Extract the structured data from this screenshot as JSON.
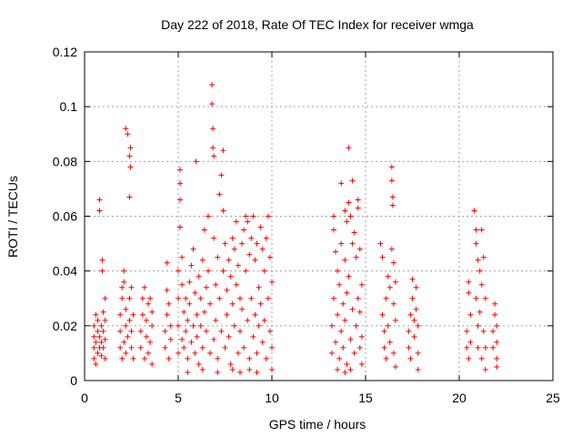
{
  "chart_data": {
    "type": "scatter",
    "title": "Day 222 of 2018, Rate Of TEC Index for receiver wmga",
    "xlabel": "GPS time / hours",
    "ylabel": "ROTI / TECUs",
    "xlim": [
      0,
      25
    ],
    "ylim": [
      0,
      0.12
    ],
    "xticks": [
      0,
      5,
      10,
      15,
      20,
      25
    ],
    "yticks": [
      0,
      0.02,
      0.04,
      0.06,
      0.08,
      0.1,
      0.12
    ],
    "xtick_labels": [
      "0",
      "5",
      "10",
      "15",
      "20",
      "25"
    ],
    "ytick_labels": [
      "0",
      "0.02",
      "0.04",
      "0.06",
      "0.08",
      "0.1",
      "0.12"
    ],
    "grid": true,
    "marker": "+",
    "color": "#ff0000",
    "series": [
      {
        "points": [
          [
            0.5,
            0.012
          ],
          [
            0.5,
            0.016
          ],
          [
            0.5,
            0.02
          ],
          [
            0.5,
            0.008
          ],
          [
            0.6,
            0.024
          ],
          [
            0.6,
            0.006
          ],
          [
            0.6,
            0.014
          ],
          [
            0.7,
            0.01
          ],
          [
            0.7,
            0.018
          ],
          [
            0.7,
            0.022
          ],
          [
            0.8,
            0.066
          ],
          [
            0.8,
            0.062
          ],
          [
            0.8,
            0.012
          ],
          [
            0.8,
            0.016
          ],
          [
            0.9,
            0.009
          ],
          [
            0.9,
            0.02
          ],
          [
            0.9,
            0.014
          ],
          [
            0.95,
            0.04
          ],
          [
            0.95,
            0.044
          ],
          [
            1.0,
            0.025
          ],
          [
            1.0,
            0.012
          ],
          [
            1.0,
            0.018
          ],
          [
            1.1,
            0.008
          ],
          [
            1.1,
            0.022
          ],
          [
            1.1,
            0.03
          ],
          [
            1.1,
            0.015
          ],
          [
            1.9,
            0.012
          ],
          [
            1.9,
            0.018
          ],
          [
            1.9,
            0.024
          ],
          [
            2.0,
            0.03
          ],
          [
            2.0,
            0.034
          ],
          [
            2.0,
            0.008
          ],
          [
            2.1,
            0.04
          ],
          [
            2.1,
            0.036
          ],
          [
            2.1,
            0.014
          ],
          [
            2.2,
            0.02
          ],
          [
            2.2,
            0.026
          ],
          [
            2.2,
            0.01
          ],
          [
            2.2,
            0.092
          ],
          [
            2.3,
            0.09
          ],
          [
            2.3,
            0.016
          ],
          [
            2.4,
            0.022
          ],
          [
            2.4,
            0.03
          ],
          [
            2.4,
            0.082
          ],
          [
            2.45,
            0.085
          ],
          [
            2.45,
            0.078
          ],
          [
            2.4,
            0.067
          ],
          [
            2.5,
            0.034
          ],
          [
            2.5,
            0.012
          ],
          [
            2.5,
            0.018
          ],
          [
            2.6,
            0.008
          ],
          [
            2.6,
            0.024
          ],
          [
            3.0,
            0.012
          ],
          [
            3.0,
            0.018
          ],
          [
            3.1,
            0.024
          ],
          [
            3.1,
            0.03
          ],
          [
            3.2,
            0.008
          ],
          [
            3.2,
            0.034
          ],
          [
            3.3,
            0.016
          ],
          [
            3.3,
            0.022
          ],
          [
            3.4,
            0.028
          ],
          [
            3.4,
            0.01
          ],
          [
            3.5,
            0.03
          ],
          [
            3.5,
            0.014
          ],
          [
            3.6,
            0.02
          ],
          [
            3.6,
            0.025
          ],
          [
            3.6,
            0.006
          ],
          [
            4.3,
            0.012
          ],
          [
            4.3,
            0.018
          ],
          [
            4.4,
            0.024
          ],
          [
            4.4,
            0.033
          ],
          [
            4.4,
            0.043
          ],
          [
            4.5,
            0.008
          ],
          [
            4.5,
            0.028
          ],
          [
            4.6,
            0.015
          ],
          [
            4.6,
            0.02
          ],
          [
            5.0,
            0.01
          ],
          [
            5.0,
            0.02
          ],
          [
            5.0,
            0.03
          ],
          [
            5.0,
            0.04
          ],
          [
            5.1,
            0.077
          ],
          [
            5.1,
            0.072
          ],
          [
            5.1,
            0.066
          ],
          [
            5.1,
            0.056
          ],
          [
            5.2,
            0.045
          ],
          [
            5.2,
            0.035
          ],
          [
            5.2,
            0.015
          ],
          [
            5.3,
            0.025
          ],
          [
            5.3,
            0.012
          ],
          [
            5.4,
            0.03
          ],
          [
            5.4,
            0.018
          ],
          [
            5.5,
            0.022
          ],
          [
            5.5,
            0.008
          ],
          [
            5.6,
            0.036
          ],
          [
            5.6,
            0.028
          ],
          [
            5.7,
            0.042
          ],
          [
            5.7,
            0.014
          ],
          [
            5.8,
            0.048
          ],
          [
            5.8,
            0.02
          ],
          [
            5.9,
            0.032
          ],
          [
            5.9,
            0.01
          ],
          [
            5.95,
            0.08
          ],
          [
            6.0,
            0.024
          ],
          [
            6.0,
            0.016
          ],
          [
            6.1,
            0.038
          ],
          [
            6.1,
            0.006
          ],
          [
            6.2,
            0.03
          ],
          [
            6.2,
            0.02
          ],
          [
            6.3,
            0.044
          ],
          [
            6.3,
            0.012
          ],
          [
            6.4,
            0.055
          ],
          [
            6.4,
            0.025
          ],
          [
            6.5,
            0.034
          ],
          [
            6.5,
            0.018
          ],
          [
            6.6,
            0.06
          ],
          [
            6.6,
            0.04
          ],
          [
            6.7,
            0.028
          ],
          [
            6.7,
            0.01
          ],
          [
            6.8,
            0.108
          ],
          [
            6.8,
            0.101
          ],
          [
            6.85,
            0.092
          ],
          [
            6.85,
            0.085
          ],
          [
            6.9,
            0.082
          ],
          [
            6.9,
            0.052
          ],
          [
            6.9,
            0.015
          ],
          [
            7.0,
            0.035
          ],
          [
            7.0,
            0.022
          ],
          [
            7.1,
            0.045
          ],
          [
            7.1,
            0.008
          ],
          [
            7.2,
            0.068
          ],
          [
            7.2,
            0.03
          ],
          [
            7.3,
            0.075
          ],
          [
            7.3,
            0.018
          ],
          [
            7.4,
            0.084
          ],
          [
            7.4,
            0.062
          ],
          [
            7.4,
            0.04
          ],
          [
            7.5,
            0.05
          ],
          [
            7.5,
            0.012
          ],
          [
            7.6,
            0.033
          ],
          [
            7.6,
            0.024
          ],
          [
            7.7,
            0.044
          ],
          [
            7.7,
            0.016
          ],
          [
            7.8,
            0.038
          ],
          [
            7.8,
            0.006
          ],
          [
            7.9,
            0.052
          ],
          [
            7.9,
            0.028
          ],
          [
            8.0,
            0.048
          ],
          [
            8.0,
            0.02
          ],
          [
            8.1,
            0.058
          ],
          [
            8.1,
            0.035
          ],
          [
            8.2,
            0.042
          ],
          [
            8.2,
            0.01
          ],
          [
            8.3,
            0.03
          ],
          [
            8.3,
            0.018
          ],
          [
            8.4,
            0.05
          ],
          [
            8.4,
            0.026
          ],
          [
            8.5,
            0.055
          ],
          [
            8.5,
            0.012
          ],
          [
            8.6,
            0.06
          ],
          [
            8.6,
            0.04
          ],
          [
            8.7,
            0.058
          ],
          [
            8.7,
            0.022
          ],
          [
            8.8,
            0.046
          ],
          [
            8.8,
            0.008
          ],
          [
            8.9,
            0.052
          ],
          [
            8.9,
            0.03
          ],
          [
            9.0,
            0.06
          ],
          [
            9.0,
            0.016
          ],
          [
            9.1,
            0.044
          ],
          [
            9.1,
            0.024
          ],
          [
            9.2,
            0.05
          ],
          [
            9.2,
            0.01
          ],
          [
            9.3,
            0.034
          ],
          [
            9.3,
            0.02
          ],
          [
            9.4,
            0.056
          ],
          [
            9.4,
            0.028
          ],
          [
            9.5,
            0.048
          ],
          [
            9.5,
            0.014
          ],
          [
            9.6,
            0.04
          ],
          [
            9.6,
            0.022
          ],
          [
            9.7,
            0.052
          ],
          [
            9.7,
            0.008
          ],
          [
            9.8,
            0.06
          ],
          [
            9.8,
            0.03
          ],
          [
            9.9,
            0.045
          ],
          [
            9.9,
            0.018
          ],
          [
            10.0,
            0.036
          ],
          [
            10.0,
            0.012
          ],
          [
            10.0,
            0.004
          ],
          [
            7.9,
            0.004
          ],
          [
            8.3,
            0.003
          ],
          [
            6.3,
            0.004
          ],
          [
            5.5,
            0.003
          ],
          [
            9.2,
            0.003
          ],
          [
            7.1,
            0.003
          ],
          [
            8.8,
            0.004
          ],
          [
            13.2,
            0.01
          ],
          [
            13.2,
            0.02
          ],
          [
            13.3,
            0.06
          ],
          [
            13.3,
            0.055
          ],
          [
            13.3,
            0.03
          ],
          [
            13.4,
            0.047
          ],
          [
            13.4,
            0.014
          ],
          [
            13.5,
            0.04
          ],
          [
            13.5,
            0.024
          ],
          [
            13.6,
            0.035
          ],
          [
            13.6,
            0.008
          ],
          [
            13.7,
            0.072
          ],
          [
            13.7,
            0.05
          ],
          [
            13.7,
            0.018
          ],
          [
            13.8,
            0.028
          ],
          [
            13.8,
            0.012
          ],
          [
            13.9,
            0.062
          ],
          [
            13.9,
            0.044
          ],
          [
            13.9,
            0.022
          ],
          [
            14.0,
            0.058
          ],
          [
            14.0,
            0.032
          ],
          [
            14.0,
            0.006
          ],
          [
            14.1,
            0.085
          ],
          [
            14.1,
            0.065
          ],
          [
            14.1,
            0.038
          ],
          [
            14.2,
            0.06
          ],
          [
            14.2,
            0.015
          ],
          [
            14.3,
            0.073
          ],
          [
            14.3,
            0.05
          ],
          [
            14.3,
            0.026
          ],
          [
            14.4,
            0.054
          ],
          [
            14.4,
            0.01
          ],
          [
            14.5,
            0.045
          ],
          [
            14.5,
            0.02
          ],
          [
            14.6,
            0.066
          ],
          [
            14.6,
            0.063
          ],
          [
            14.6,
            0.03
          ],
          [
            14.7,
            0.048
          ],
          [
            14.7,
            0.025
          ],
          [
            14.7,
            0.012
          ],
          [
            14.8,
            0.035
          ],
          [
            14.8,
            0.016
          ],
          [
            14.8,
            0.006
          ],
          [
            13.5,
            0.004
          ],
          [
            14.2,
            0.004
          ],
          [
            13.9,
            0.003
          ],
          [
            15.8,
            0.05
          ],
          [
            15.9,
            0.045
          ],
          [
            15.9,
            0.024
          ],
          [
            16.0,
            0.012
          ],
          [
            16.0,
            0.018
          ],
          [
            16.1,
            0.03
          ],
          [
            16.1,
            0.008
          ],
          [
            16.2,
            0.038
          ],
          [
            16.2,
            0.02
          ],
          [
            16.3,
            0.034
          ],
          [
            16.3,
            0.014
          ],
          [
            16.4,
            0.078
          ],
          [
            16.4,
            0.073
          ],
          [
            16.4,
            0.048
          ],
          [
            16.45,
            0.067
          ],
          [
            16.45,
            0.064
          ],
          [
            16.5,
            0.043
          ],
          [
            16.5,
            0.028
          ],
          [
            16.5,
            0.01
          ],
          [
            16.6,
            0.022
          ],
          [
            16.6,
            0.036
          ],
          [
            16.6,
            0.005
          ],
          [
            17.3,
            0.012
          ],
          [
            17.3,
            0.018
          ],
          [
            17.4,
            0.024
          ],
          [
            17.4,
            0.008
          ],
          [
            17.5,
            0.03
          ],
          [
            17.5,
            0.037
          ],
          [
            17.6,
            0.016
          ],
          [
            17.6,
            0.022
          ],
          [
            17.7,
            0.026
          ],
          [
            17.7,
            0.034
          ],
          [
            17.8,
            0.01
          ],
          [
            17.8,
            0.02
          ],
          [
            17.8,
            0.004
          ],
          [
            20.4,
            0.012
          ],
          [
            20.4,
            0.018
          ],
          [
            20.5,
            0.036
          ],
          [
            20.5,
            0.032
          ],
          [
            20.5,
            0.008
          ],
          [
            20.6,
            0.024
          ],
          [
            20.6,
            0.014
          ],
          [
            20.8,
            0.062
          ],
          [
            20.9,
            0.055
          ],
          [
            20.9,
            0.05
          ],
          [
            20.9,
            0.03
          ],
          [
            21.0,
            0.044
          ],
          [
            21.0,
            0.02
          ],
          [
            21.0,
            0.012
          ],
          [
            21.1,
            0.04
          ],
          [
            21.1,
            0.025
          ],
          [
            21.2,
            0.055
          ],
          [
            21.2,
            0.035
          ],
          [
            21.2,
            0.008
          ],
          [
            21.3,
            0.045
          ],
          [
            21.3,
            0.018
          ],
          [
            21.4,
            0.03
          ],
          [
            21.4,
            0.012
          ],
          [
            21.4,
            0.004
          ],
          [
            21.8,
            0.012
          ],
          [
            21.8,
            0.018
          ],
          [
            21.9,
            0.024
          ],
          [
            21.9,
            0.028
          ],
          [
            22.0,
            0.008
          ],
          [
            22.0,
            0.02
          ],
          [
            22.0,
            0.014
          ],
          [
            22.0,
            0.005
          ]
        ]
      }
    ]
  }
}
